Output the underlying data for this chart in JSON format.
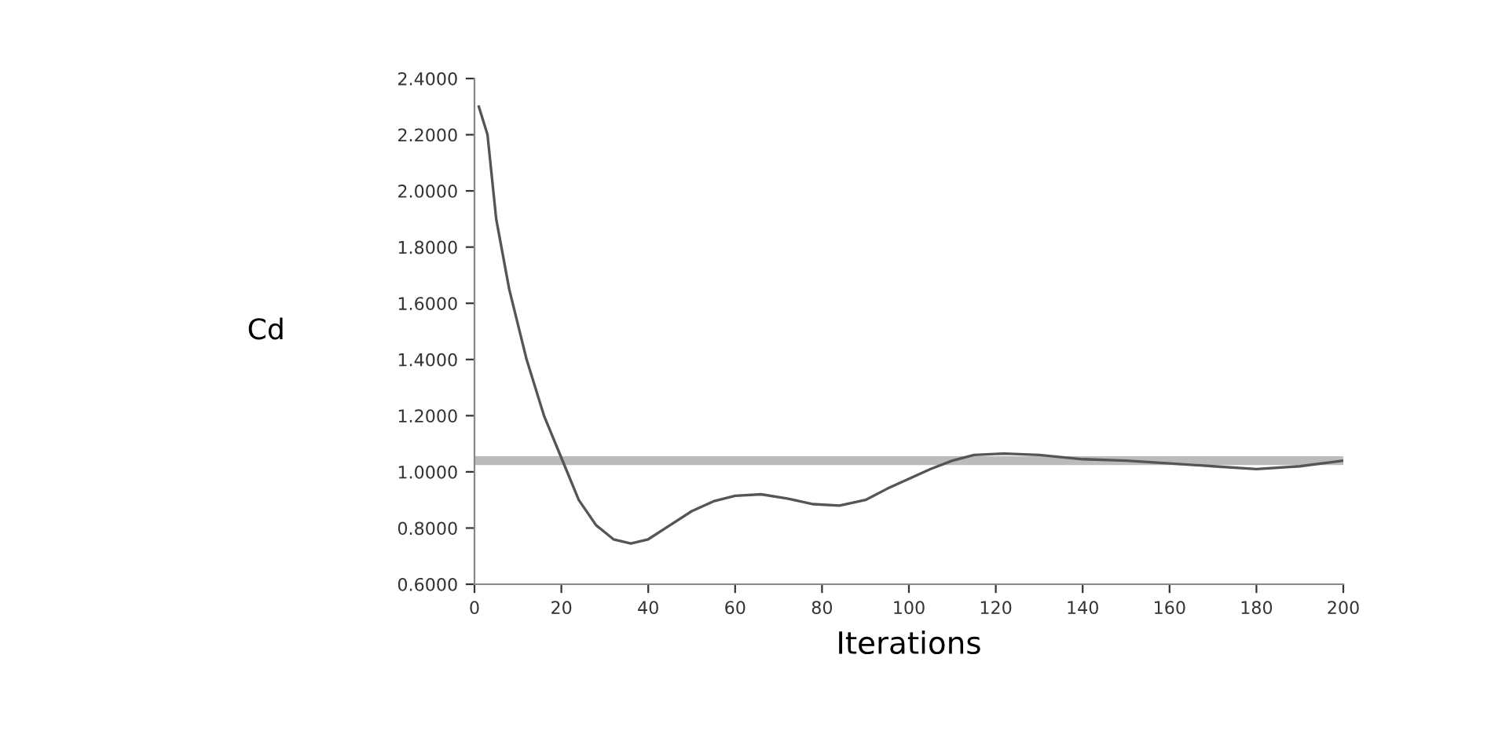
{
  "chart_data": {
    "type": "line",
    "xlabel": "Iterations",
    "ylabel": "Cd",
    "x": [
      1,
      3,
      5,
      8,
      12,
      16,
      20,
      24,
      28,
      32,
      36,
      40,
      45,
      50,
      55,
      60,
      66,
      72,
      78,
      84,
      90,
      95,
      100,
      105,
      110,
      115,
      122,
      130,
      140,
      150,
      160,
      170,
      180,
      190,
      200
    ],
    "series": [
      {
        "color": "#555555",
        "values": [
          2.3,
          2.2,
          1.9,
          1.65,
          1.4,
          1.2,
          1.05,
          0.9,
          0.81,
          0.76,
          0.745,
          0.76,
          0.81,
          0.86,
          0.895,
          0.915,
          0.92,
          0.905,
          0.885,
          0.88,
          0.9,
          0.94,
          0.975,
          1.01,
          1.04,
          1.06,
          1.065,
          1.06,
          1.045,
          1.04,
          1.03,
          1.02,
          1.01,
          1.02,
          1.04
        ]
      }
    ],
    "ref_lines": [
      {
        "axis": "y",
        "value": 1.04,
        "color": "#bbbbbb"
      }
    ],
    "xlim": [
      0,
      200
    ],
    "xticks": [
      0,
      20,
      40,
      60,
      80,
      100,
      120,
      140,
      160,
      180,
      200
    ],
    "ylim": [
      0.6,
      2.4
    ],
    "yticks": [
      {
        "value": 0.6,
        "label": "0.6000"
      },
      {
        "value": 0.8,
        "label": "0.8000"
      },
      {
        "value": 1.0,
        "label": "1.0000"
      },
      {
        "value": 1.2,
        "label": "1.2000"
      },
      {
        "value": 1.4,
        "label": "1.4000"
      },
      {
        "value": 1.6,
        "label": "1.6000"
      },
      {
        "value": 1.8,
        "label": "1.8000"
      },
      {
        "value": 2.0,
        "label": "2.0000"
      },
      {
        "value": 2.2,
        "label": "2.2000"
      },
      {
        "value": 2.4,
        "label": "2.4000"
      }
    ],
    "grid": false,
    "legend": false
  }
}
